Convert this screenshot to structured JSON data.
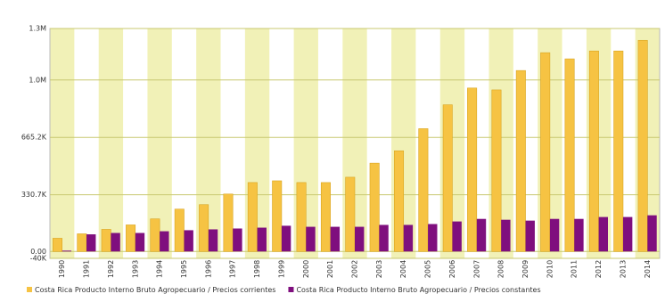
{
  "chart_data": {
    "type": "bar",
    "categories": [
      "1990",
      "1991",
      "1992",
      "1993",
      "1994",
      "1995",
      "1996",
      "1997",
      "1998",
      "1999",
      "2000",
      "2001",
      "2002",
      "2003",
      "2004",
      "2005",
      "2006",
      "2007",
      "2008",
      "2009",
      "2010",
      "2011",
      "2012",
      "2013",
      "2014"
    ],
    "series": [
      {
        "name": "Costa Rica Producto Interno Bruto Agropecuario / Precios corrientes",
        "color": "#f6c343",
        "values": [
          77000,
          103000,
          129000,
          155000,
          190000,
          247000,
          273000,
          335000,
          402000,
          412000,
          402000,
          402000,
          433000,
          515000,
          587000,
          716000,
          855000,
          953000,
          942000,
          1055000,
          1159000,
          1123000,
          1169000,
          1169000,
          1231000
        ]
      },
      {
        "name": "Costa Rica Producto Interno Bruto Agropecuario / Precios constantes",
        "color": "#7f0f7e",
        "values": [
          5000,
          100000,
          108000,
          108000,
          118000,
          124000,
          129000,
          134000,
          139000,
          150000,
          144000,
          144000,
          144000,
          155000,
          155000,
          160000,
          175000,
          190000,
          185000,
          180000,
          190000,
          190000,
          201000,
          201000,
          211000
        ]
      }
    ],
    "ylim": [
      -40000,
      1300000
    ],
    "yticks": [
      {
        "value": -40000,
        "label": "-40K"
      },
      {
        "value": 0,
        "label": "0.00"
      },
      {
        "value": 330700,
        "label": "330.7K"
      },
      {
        "value": 665200,
        "label": "665.2K"
      },
      {
        "value": 1000000,
        "label": "1.0M"
      },
      {
        "value": 1300000,
        "label": "1.3M"
      }
    ],
    "grid": true
  }
}
